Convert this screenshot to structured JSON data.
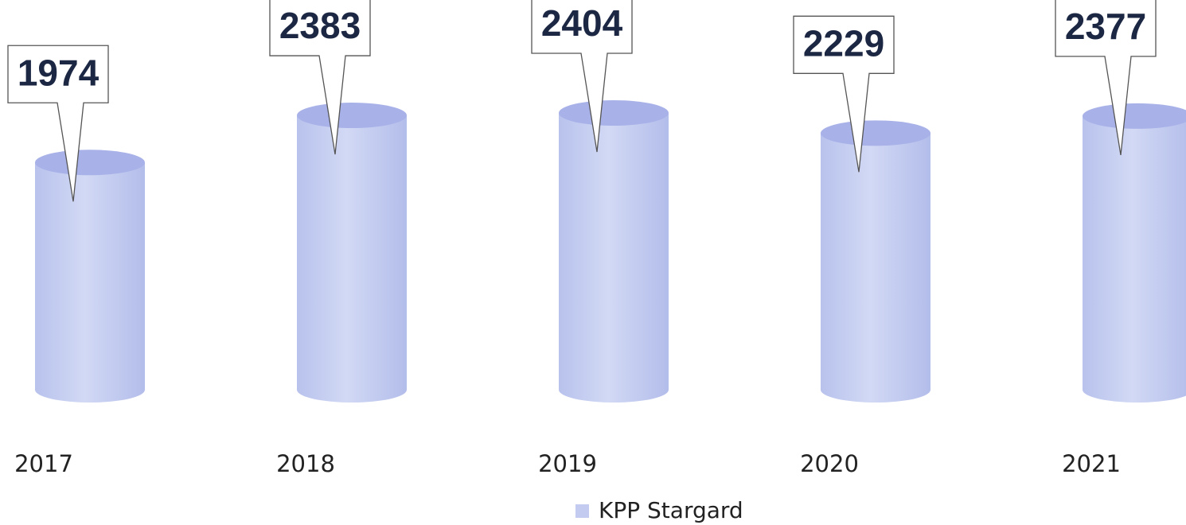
{
  "chart_data": {
    "type": "bar",
    "categories": [
      "2017",
      "2018",
      "2019",
      "2020",
      "2021"
    ],
    "series": [
      {
        "name": "KPP Stargard",
        "color": "#c3ccf0",
        "values": [
          1974,
          2383,
          2404,
          2229,
          2377
        ]
      }
    ]
  }
}
